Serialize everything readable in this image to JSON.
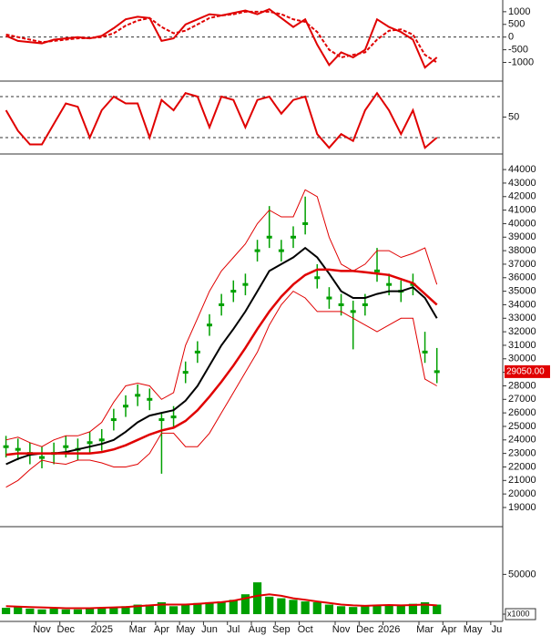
{
  "chart_data": [
    {
      "type": "line",
      "ylim": [
        -1700,
        1390
      ],
      "yticks": [
        -1000,
        -500,
        0,
        500,
        1000
      ],
      "ref_lines": [
        0
      ],
      "series": [
        {
          "color": "#e00000",
          "dashed": false,
          "values": [
            50,
            -150,
            -200,
            -250,
            -100,
            -50,
            0,
            -50,
            50,
            350,
            700,
            800,
            750,
            -150,
            -50,
            500,
            700,
            900,
            850,
            950,
            1050,
            900,
            1100,
            750,
            400,
            700,
            -300,
            -1100,
            -600,
            -800,
            -500,
            700,
            400,
            200,
            -100,
            -1200,
            -800,
            null,
            null,
            null,
            null,
            null
          ]
        },
        {
          "color": "#e00000",
          "dashed": true,
          "values": [
            100,
            0,
            -100,
            -200,
            -150,
            -100,
            -50,
            -40,
            0,
            150,
            450,
            650,
            750,
            400,
            150,
            250,
            500,
            750,
            850,
            900,
            1000,
            1000,
            1000,
            900,
            700,
            600,
            200,
            -500,
            -800,
            -700,
            -600,
            -100,
            250,
            300,
            100,
            -700,
            -1000,
            null,
            null,
            null,
            null,
            null
          ]
        }
      ]
    },
    {
      "type": "line",
      "ylim": [
        -2.7,
        97.3
      ],
      "yticks": [
        50
      ],
      "ref_lines": [
        20,
        80
      ],
      "series": [
        {
          "color": "#e00000",
          "dashed": false,
          "values": [
            60,
            30,
            10,
            10,
            40,
            70,
            65,
            20,
            60,
            80,
            70,
            70,
            20,
            75,
            60,
            85,
            80,
            35,
            80,
            75,
            35,
            75,
            80,
            55,
            75,
            80,
            25,
            5,
            25,
            15,
            60,
            85,
            60,
            25,
            60,
            5,
            20,
            null,
            null,
            null,
            null,
            null
          ]
        }
      ]
    },
    {
      "type": "candlestick",
      "ylim": [
        17650,
        44950
      ],
      "yticks": [
        19000,
        20000,
        21000,
        22000,
        23000,
        24000,
        25000,
        26000,
        27000,
        28000,
        29000,
        30000,
        31000,
        32000,
        33000,
        34000,
        35000,
        36000,
        37000,
        38000,
        39000,
        40000,
        41000,
        42000,
        43000,
        44000
      ],
      "color": "#00a000",
      "high": [
        24300,
        24100,
        23800,
        23500,
        23800,
        24300,
        24100,
        24600,
        24800,
        26300,
        27300,
        28100,
        27800,
        26000,
        26500,
        29800,
        31300,
        33300,
        34800,
        35800,
        36300,
        38800,
        41300,
        38800,
        39800,
        42000,
        37000,
        35300,
        34800,
        34300,
        34800,
        38200,
        36300,
        35800,
        36300,
        32000,
        30800,
        null,
        null,
        null,
        null,
        null
      ],
      "low": [
        22700,
        22500,
        22200,
        21900,
        22200,
        22700,
        22500,
        23000,
        23200,
        24700,
        25700,
        26500,
        26200,
        21500,
        24900,
        28200,
        29700,
        31700,
        33200,
        34200,
        34700,
        37200,
        38200,
        37200,
        38200,
        39200,
        35200,
        33700,
        33200,
        30700,
        33200,
        35700,
        34700,
        34200,
        34700,
        29700,
        28200,
        null,
        null,
        null,
        null,
        null
      ],
      "close": [
        23500,
        23300,
        23000,
        22700,
        23000,
        23500,
        23300,
        23800,
        24000,
        25500,
        26500,
        27300,
        27000,
        25500,
        25700,
        29000,
        30500,
        32500,
        34000,
        35000,
        35500,
        38000,
        39000,
        38000,
        39000,
        40000,
        36000,
        34500,
        34000,
        33500,
        34000,
        36500,
        35500,
        35000,
        35500,
        30500,
        29050,
        null,
        null,
        null,
        null,
        null
      ],
      "last_price": {
        "value": 29050,
        "label": "29050.00"
      },
      "series": [
        {
          "color": "#000000",
          "width": 2,
          "values": [
            22200,
            22600,
            22900,
            23000,
            23000,
            23100,
            23300,
            23500,
            23700,
            24000,
            24600,
            25300,
            25800,
            26000,
            26200,
            26900,
            28000,
            29500,
            31000,
            32200,
            33500,
            35000,
            36500,
            37000,
            37500,
            38200,
            37500,
            36300,
            35000,
            34500,
            34500,
            34800,
            35000,
            35000,
            35300,
            34500,
            33000,
            null,
            null,
            null,
            null,
            null
          ]
        },
        {
          "color": "#e00000",
          "width": 2.5,
          "values": [
            22900,
            23000,
            23000,
            23000,
            23000,
            23000,
            23000,
            23000,
            23100,
            23300,
            23600,
            24000,
            24400,
            24700,
            24900,
            25400,
            26200,
            27200,
            28300,
            29500,
            30800,
            32200,
            33500,
            34600,
            35500,
            36200,
            36600,
            36600,
            36500,
            36500,
            36400,
            36300,
            36200,
            35900,
            35600,
            34800,
            34000,
            null,
            null,
            null,
            null,
            null
          ]
        },
        {
          "color": "#e00000",
          "width": 1,
          "values": [
            24000,
            24200,
            23800,
            23500,
            24000,
            24300,
            24300,
            24600,
            25300,
            26800,
            28000,
            28200,
            28000,
            27000,
            27500,
            31000,
            33000,
            35000,
            36500,
            37500,
            38500,
            40000,
            41000,
            40500,
            40500,
            42500,
            42000,
            39000,
            37000,
            36500,
            37000,
            38000,
            38000,
            37500,
            37800,
            38200,
            35500,
            null,
            null,
            null,
            null,
            null
          ]
        },
        {
          "color": "#e00000",
          "width": 1,
          "values": [
            20500,
            21000,
            21800,
            22500,
            22300,
            22200,
            22500,
            22500,
            22300,
            22000,
            22000,
            22200,
            23000,
            24500,
            24500,
            23500,
            23500,
            24500,
            26000,
            27500,
            29000,
            30500,
            32500,
            34000,
            35000,
            34500,
            33500,
            33500,
            33500,
            33000,
            32500,
            32000,
            32500,
            33000,
            33000,
            28500,
            28000,
            null,
            null,
            null,
            null,
            null
          ]
        }
      ]
    },
    {
      "type": "bar",
      "ylim": [
        -8000,
        110000
      ],
      "yticks": [
        0,
        50000
      ],
      "unit_label": "x1000",
      "color": "#00a000",
      "categories": [
        null,
        null,
        null,
        "Nov",
        null,
        "Dec",
        null,
        null,
        "2025",
        null,
        null,
        "Mar",
        null,
        "Apr",
        null,
        "May",
        null,
        "Jun",
        null,
        "Jul",
        null,
        "Aug",
        null,
        "Sep",
        null,
        "Oct",
        null,
        null,
        "Nov",
        null,
        "Dec",
        null,
        "2026",
        null,
        null,
        "Mar",
        null,
        "Apr",
        null,
        "May",
        null,
        "Ju"
      ],
      "values": [
        8000,
        10000,
        7000,
        6000,
        7000,
        6000,
        6000,
        7000,
        8000,
        9000,
        10000,
        12000,
        12000,
        15000,
        10000,
        12000,
        14000,
        15000,
        16000,
        18000,
        25000,
        40000,
        22000,
        20000,
        18000,
        16000,
        15000,
        12000,
        10000,
        9000,
        10000,
        12000,
        12000,
        11000,
        13000,
        15000,
        12000,
        null,
        null,
        null,
        null,
        null
      ],
      "series": [
        {
          "color": "#e00000",
          "width": 2,
          "values": [
            10000,
            9500,
            9000,
            8500,
            8000,
            7500,
            7500,
            7500,
            8000,
            8500,
            9000,
            10000,
            11000,
            12000,
            12000,
            12000,
            13000,
            14000,
            15000,
            17000,
            20000,
            23000,
            25000,
            23000,
            20000,
            18000,
            16000,
            14000,
            12000,
            11000,
            10500,
            11000,
            11500,
            11000,
            11500,
            12000,
            11000,
            null,
            null,
            null,
            null,
            null
          ]
        }
      ]
    }
  ]
}
